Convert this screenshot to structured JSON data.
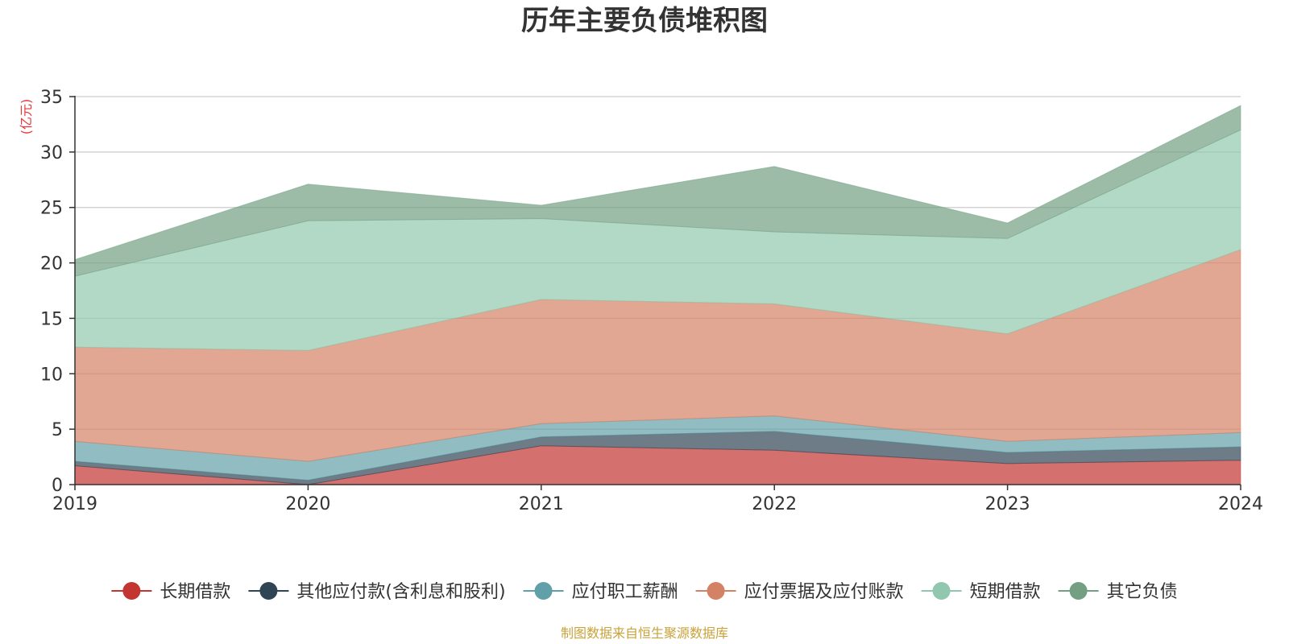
{
  "chart_data": {
    "type": "area",
    "stacked": true,
    "title": "历年主要负债堆积图",
    "ylabel": "(亿元)",
    "x": [
      "2019",
      "2020",
      "2021",
      "2022",
      "2023",
      "2024"
    ],
    "ylim": [
      0,
      35
    ],
    "yticks": [
      0,
      5,
      10,
      15,
      20,
      25,
      30,
      35
    ],
    "grid": true,
    "legend_position": "bottom",
    "series": [
      {
        "name": "长期借款",
        "color": "#c23531",
        "values": [
          1.7,
          0.0,
          3.5,
          3.1,
          1.9,
          2.2
        ]
      },
      {
        "name": "其他应付款(含利息和股利)",
        "color": "#2f4554",
        "values": [
          0.4,
          0.4,
          0.8,
          1.7,
          1.0,
          1.2
        ]
      },
      {
        "name": "应付职工薪酬",
        "color": "#61a0a8",
        "values": [
          1.8,
          1.7,
          1.2,
          1.4,
          1.0,
          1.3
        ]
      },
      {
        "name": "应付票据及应付账款",
        "color": "#d48265",
        "values": [
          8.5,
          10.0,
          11.2,
          10.1,
          9.7,
          16.5
        ]
      },
      {
        "name": "短期借款",
        "color": "#91c7ae",
        "values": [
          6.4,
          11.7,
          7.3,
          6.5,
          8.6,
          10.8
        ]
      },
      {
        "name": "其它负债",
        "color": "#749f83",
        "values": [
          1.5,
          3.3,
          1.2,
          5.9,
          1.4,
          2.2
        ]
      }
    ]
  },
  "source_text": "制图数据来自恒生聚源数据库",
  "colors": {
    "unit_label": "#e8373a",
    "source_text": "#c9a23a",
    "grid": "#cccccc",
    "axis": "#333333"
  }
}
